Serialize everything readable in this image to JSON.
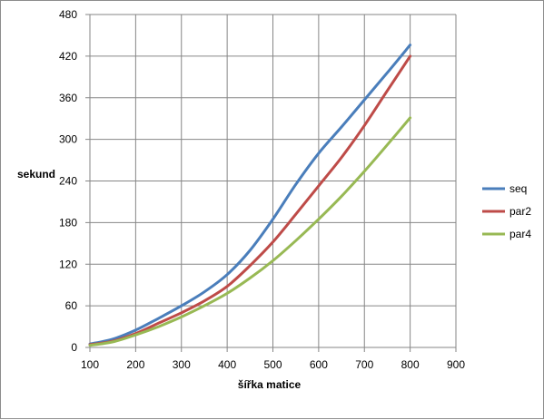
{
  "chart_data": {
    "type": "line",
    "title": "",
    "xlabel": "šířka matice",
    "ylabel": "sekund",
    "xlim": [
      100,
      900
    ],
    "ylim": [
      0,
      480
    ],
    "xticks": [
      "100",
      "200",
      "300",
      "400",
      "500",
      "600",
      "700",
      "800",
      "900"
    ],
    "yticks": [
      "0",
      "60",
      "120",
      "180",
      "240",
      "300",
      "360",
      "420",
      "480"
    ],
    "grid": true,
    "legend_position": "right",
    "x": [
      100,
      150,
      200,
      250,
      300,
      350,
      400,
      450,
      500,
      550,
      600,
      650,
      700,
      750,
      800
    ],
    "series": [
      {
        "name": "seq",
        "color": "#4a7ebb",
        "values": [
          5,
          12,
          25,
          42,
          60,
          80,
          105,
          140,
          185,
          235,
          280,
          318,
          357,
          396,
          436
        ]
      },
      {
        "name": "par2",
        "color": "#be4b48",
        "values": [
          4,
          9,
          20,
          35,
          50,
          67,
          88,
          118,
          152,
          192,
          233,
          274,
          320,
          370,
          420
        ]
      },
      {
        "name": "par4",
        "color": "#98b954",
        "values": [
          3,
          8,
          18,
          30,
          44,
          60,
          78,
          100,
          125,
          154,
          185,
          218,
          254,
          292,
          331
        ]
      }
    ]
  }
}
